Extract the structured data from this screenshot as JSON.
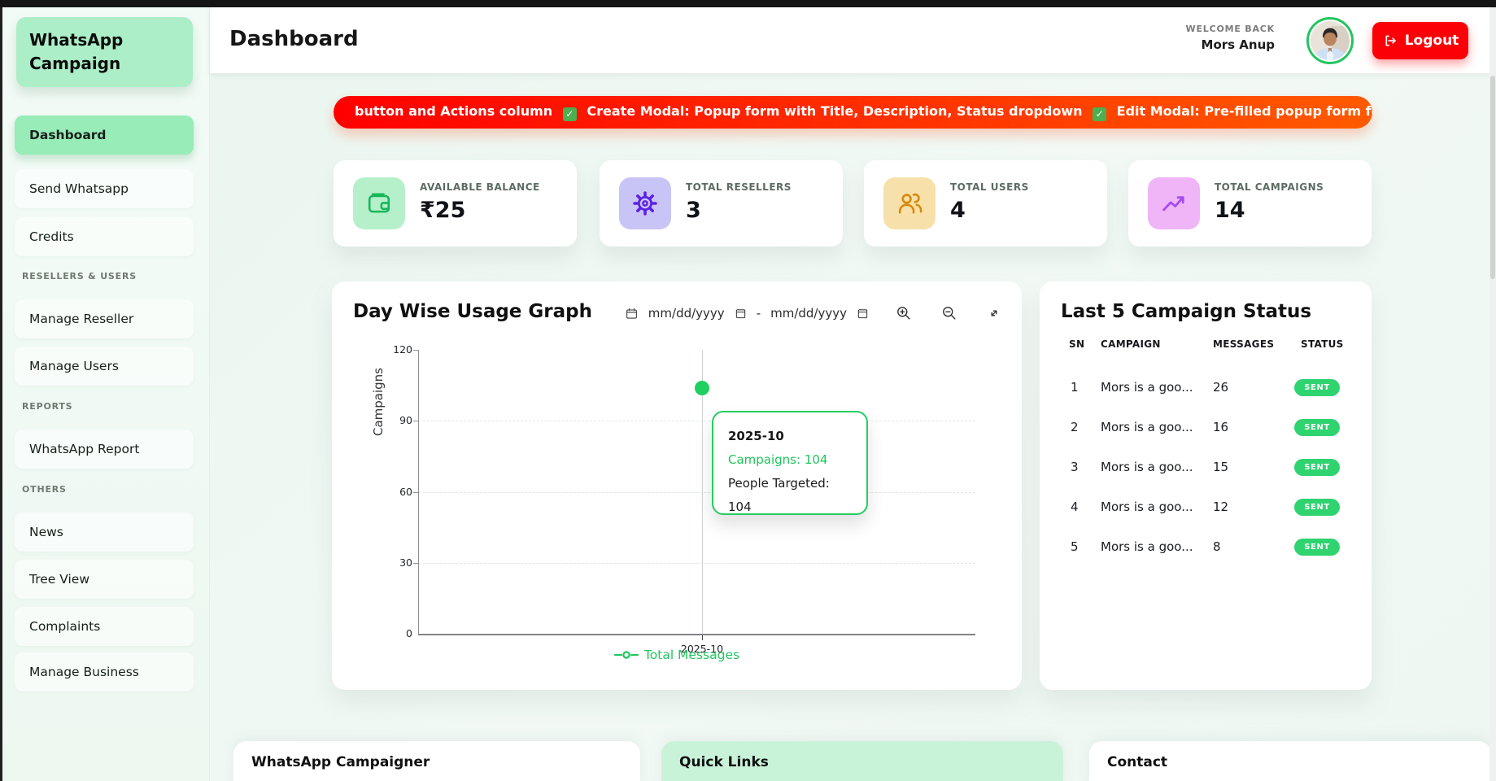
{
  "sidebar": {
    "brand_line1": "WhatsApp",
    "brand_line2": "Campaign",
    "groups": [
      {
        "label": "",
        "items": [
          {
            "label": "Dashboard"
          },
          {
            "label": "Send Whatsapp"
          },
          {
            "label": "Credits"
          }
        ]
      },
      {
        "label": "RESELLERS & USERS",
        "items": [
          {
            "label": "Manage Reseller"
          },
          {
            "label": "Manage Users"
          }
        ]
      },
      {
        "label": "REPORTS",
        "items": [
          {
            "label": "WhatsApp Report"
          }
        ]
      },
      {
        "label": "OTHERS",
        "items": [
          {
            "label": "News"
          },
          {
            "label": "Tree View"
          },
          {
            "label": "Complaints"
          },
          {
            "label": "Manage Business"
          }
        ]
      }
    ]
  },
  "header": {
    "title": "Dashboard",
    "welcome": "WELCOME BACK",
    "user": "Mors Anup",
    "logout": "Logout"
  },
  "banner": {
    "text": "button and Actions column ✅ Create Modal: Popup form with Title, Description, Status dropdown ✅ Edit Modal: Pre-filled popup form for editing ✅ Del"
  },
  "stats": [
    {
      "label": "AVAILABLE BALANCE",
      "value": "₹25",
      "icon": "wallet-icon",
      "tile_bg": "#b6f0cb",
      "icon_color": "#17b65a"
    },
    {
      "label": "TOTAL RESELLERS",
      "value": "3",
      "icon": "gear-icon",
      "tile_bg": "#c9c4f6",
      "icon_color": "#5a21e5"
    },
    {
      "label": "TOTAL USERS",
      "value": "4",
      "icon": "users-icon",
      "tile_bg": "#f7e0a9",
      "icon_color": "#d8890b"
    },
    {
      "label": "TOTAL CAMPAIGNS",
      "value": "14",
      "icon": "trend-up-icon",
      "tile_bg": "#efb5f7",
      "icon_color": "#a34df0"
    }
  ],
  "graph": {
    "title": "Day Wise Usage Graph",
    "date_from_placeholder": "mm/dd/yyyy",
    "date_separator": "-",
    "date_to_placeholder": "mm/dd/yyyy",
    "ylabel": "Campaigns",
    "yticks": [
      "120",
      "90",
      "60",
      "30",
      "0"
    ],
    "xtick": "2025-10",
    "legend": "Total Messages",
    "tooltip": {
      "date": "2025-10",
      "campaigns": "Campaigns: 104",
      "people": "People Targeted: 104"
    }
  },
  "chart_data": {
    "type": "line",
    "title": "Day Wise Usage Graph",
    "x": [
      "2025-10"
    ],
    "series": [
      {
        "name": "Total Messages",
        "values": [
          104
        ]
      },
      {
        "name": "People Targeted",
        "values": [
          104
        ]
      }
    ],
    "xlabel": "",
    "ylabel": "Campaigns",
    "ylim": [
      0,
      120
    ],
    "yticks": [
      0,
      30,
      60,
      90,
      120
    ],
    "grid": true,
    "legend_position": "bottom",
    "accent_color": "#1fd05f"
  },
  "campaigns": {
    "title": "Last 5 Campaign Status",
    "headers": {
      "sn": "SN",
      "campaign": "CAMPAIGN",
      "messages": "MESSAGES",
      "status": "STATUS"
    },
    "rows": [
      {
        "sn": "1",
        "campaign": "Mors is a goo...",
        "messages": "26",
        "status": "SENT"
      },
      {
        "sn": "2",
        "campaign": "Mors is a goo...",
        "messages": "16",
        "status": "SENT"
      },
      {
        "sn": "3",
        "campaign": "Mors is a goo...",
        "messages": "15",
        "status": "SENT"
      },
      {
        "sn": "4",
        "campaign": "Mors is a goo...",
        "messages": "12",
        "status": "SENT"
      },
      {
        "sn": "5",
        "campaign": "Mors is a goo...",
        "messages": "8",
        "status": "SENT"
      }
    ]
  },
  "footer": {
    "cards": [
      {
        "title": "WhatsApp Campaigner"
      },
      {
        "title": "Quick Links"
      },
      {
        "title": "Contact"
      }
    ]
  },
  "colors": {
    "accent_green": "#22c55e",
    "logout_red": "#fb0007",
    "banner_from": "#fe0000",
    "banner_to": "#ff5a00",
    "badge_green": "#2fd36f"
  }
}
